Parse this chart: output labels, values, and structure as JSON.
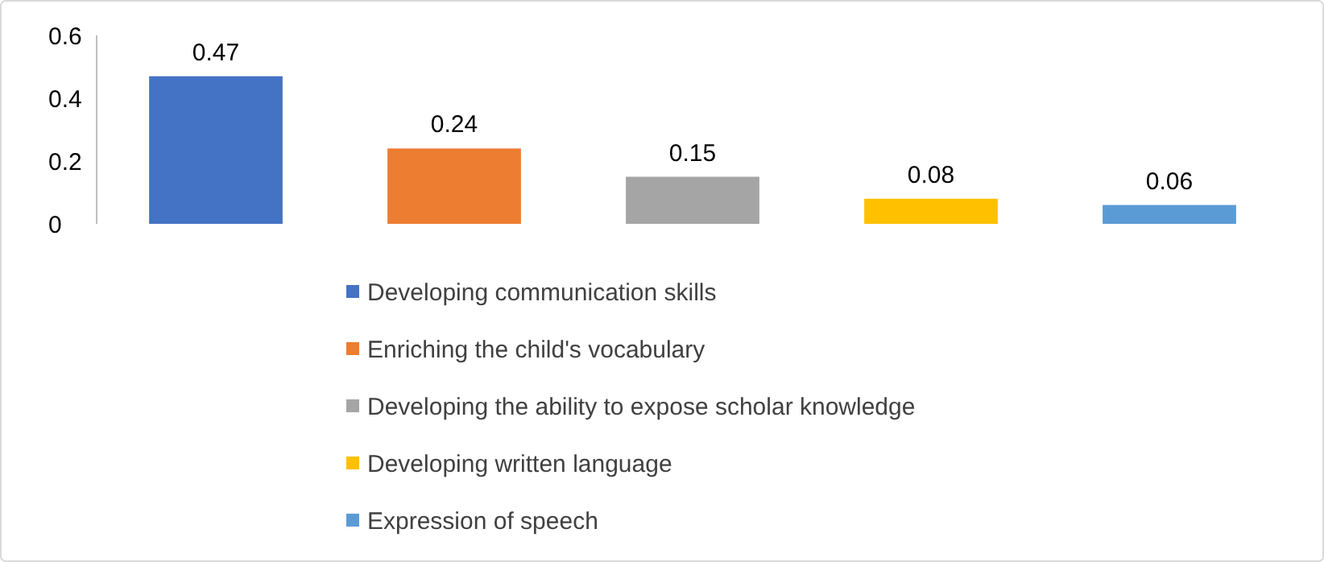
{
  "chart_data": {
    "type": "bar",
    "categories": [
      null,
      null,
      null,
      null,
      null
    ],
    "series": [
      {
        "name": "Developing communication skills",
        "color": "#4472c4",
        "values": [
          0.47,
          null,
          null,
          null,
          null
        ]
      },
      {
        "name": "Enriching the child's vocabulary",
        "color": "#ed7d31",
        "values": [
          null,
          0.24,
          null,
          null,
          null
        ]
      },
      {
        "name": "Developing the ability to expose scholar knowledge",
        "color": "#a5a5a5",
        "values": [
          null,
          null,
          0.15,
          null,
          null
        ]
      },
      {
        "name": "Developing written language",
        "color": "#ffc000",
        "values": [
          null,
          null,
          null,
          0.08,
          null
        ]
      },
      {
        "name": "Expression of speech",
        "color": "#5b9bd5",
        "values": [
          null,
          null,
          null,
          null,
          0.06
        ]
      }
    ],
    "ylim": [
      0,
      0.6
    ],
    "yticks": [
      0,
      0.2,
      0.4,
      0.6
    ],
    "data_labels": true,
    "legend": "bottom",
    "grid": false,
    "stacked": true,
    "tick_labels": "y"
  }
}
